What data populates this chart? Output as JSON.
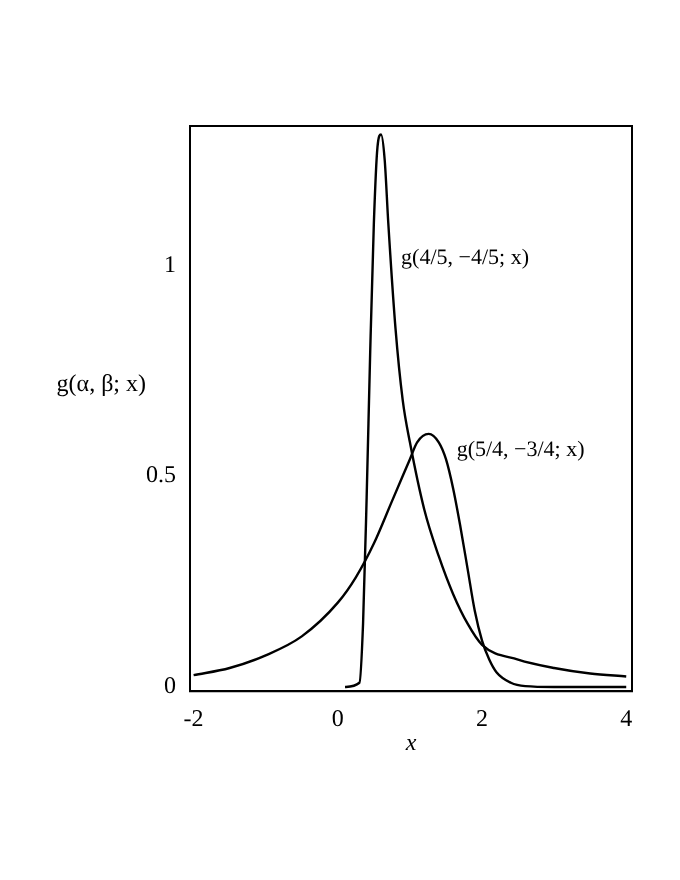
{
  "chart_data": {
    "type": "line",
    "xlabel": "x",
    "ylabel": "g(α, β; x)",
    "xlim": [
      -2.05,
      4.08
    ],
    "ylim": [
      -0.01,
      1.33
    ],
    "xticks": [
      -2,
      0,
      2,
      4
    ],
    "yticks": [
      0,
      0.5,
      1
    ],
    "grid": false,
    "legend": false,
    "marker": "none",
    "line_style": "solid",
    "series": [
      {
        "name": "g(4/5, −4/5; x)",
        "color": "#000000",
        "x": [
          0.1,
          0.3,
          0.35,
          0.4,
          0.45,
          0.5,
          0.55,
          0.6,
          0.65,
          0.7,
          0.8,
          0.9,
          1.0,
          1.2,
          1.4,
          1.6,
          1.8,
          2.0,
          2.5,
          3.0,
          3.5,
          4.0
        ],
        "values": [
          0,
          0.01,
          0.15,
          0.45,
          0.8,
          1.1,
          1.28,
          1.31,
          1.25,
          1.1,
          0.85,
          0.68,
          0.58,
          0.42,
          0.31,
          0.22,
          0.15,
          0.1,
          0.065,
          0.045,
          0.032,
          0.025
        ]
      },
      {
        "name": "g(5/4, −3/4; x)",
        "color": "#000000",
        "x": [
          -2,
          -1.5,
          -1,
          -0.5,
          0,
          0.25,
          0.5,
          0.75,
          1.0,
          1.1,
          1.26,
          1.4,
          1.5,
          1.6,
          1.7,
          1.8,
          1.9,
          2.0,
          2.1,
          2.2,
          2.4,
          2.6,
          3.0,
          4.0
        ],
        "values": [
          0.028,
          0.045,
          0.075,
          0.12,
          0.2,
          0.26,
          0.34,
          0.44,
          0.54,
          0.58,
          0.6,
          0.58,
          0.54,
          0.47,
          0.38,
          0.28,
          0.18,
          0.11,
          0.065,
          0.035,
          0.01,
          0.002,
          0,
          0
        ]
      }
    ]
  }
}
